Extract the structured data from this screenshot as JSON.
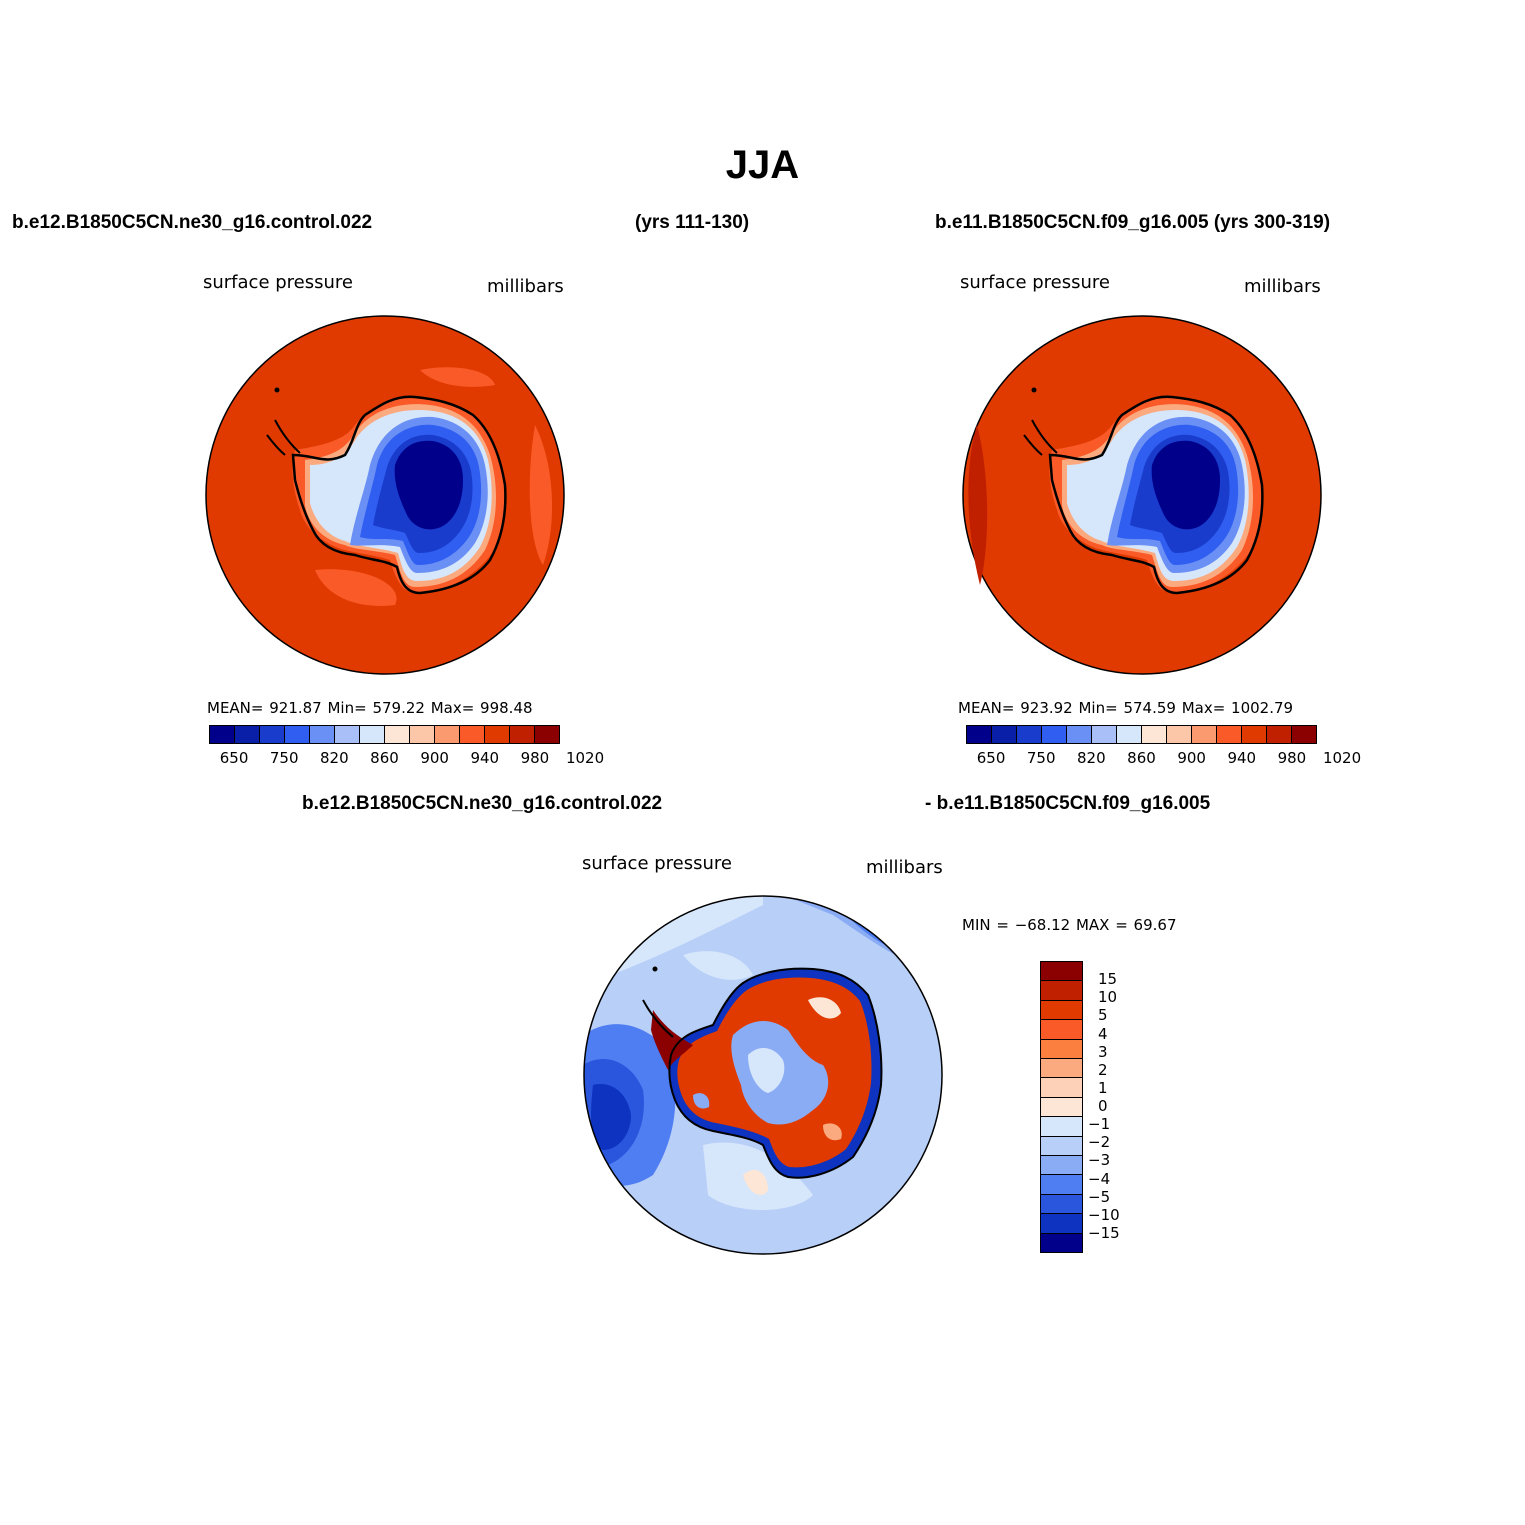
{
  "title": "JJA",
  "header": {
    "left_case": "b.e12.B1850C5CN.ne30_g16.control.022",
    "left_years": "(yrs 111-130)",
    "right_case": "b.e11.B1850C5CN.f09_g16.005 (yrs 300-319)",
    "diff_case_a": "b.e12.B1850C5CN.ne30_g16.control.022",
    "diff_case_b": "- b.e11.B1850C5CN.f09_g16.005"
  },
  "panels": [
    {
      "variable": "surface pressure",
      "units": "millibars",
      "stats": "MEAN= 921.87   Min= 579.22   Max= 998.48"
    },
    {
      "variable": "surface pressure",
      "units": "millibars",
      "stats": "MEAN= 923.92   Min= 574.59   Max= 1002.79"
    }
  ],
  "abs_colorbar": {
    "colors": [
      "#00008b",
      "#0a1fa8",
      "#1a3ccc",
      "#2f5ef0",
      "#6a8ff5",
      "#a8c0f7",
      "#d6e6fb",
      "#fde6d6",
      "#fcc6a8",
      "#fb9a6f",
      "#fa5a28",
      "#e03a00",
      "#c02000",
      "#8b0000"
    ],
    "tick_labels": [
      "650",
      "750",
      "820",
      "860",
      "900",
      "940",
      "980",
      "1020"
    ]
  },
  "diff_panel": {
    "variable": "surface pressure",
    "units": "millibars",
    "stats": "MIN = −68.12 MAX =   69.67",
    "colorbar": {
      "colors": [
        "#8b0000",
        "#c02000",
        "#e03a00",
        "#fa5a28",
        "#fb8040",
        "#fbaa80",
        "#fdd0b8",
        "#fde6d6",
        "#d6e6fb",
        "#b8cff8",
        "#8aacf5",
        "#4f7df2",
        "#2a55dd",
        "#0d33c0",
        "#00008b"
      ],
      "tick_labels": [
        "15",
        "10",
        "5",
        "4",
        "3",
        "2",
        "1",
        "0",
        "−1",
        "−2",
        "−3",
        "−4",
        "−5",
        "−10",
        "−15"
      ]
    }
  }
}
